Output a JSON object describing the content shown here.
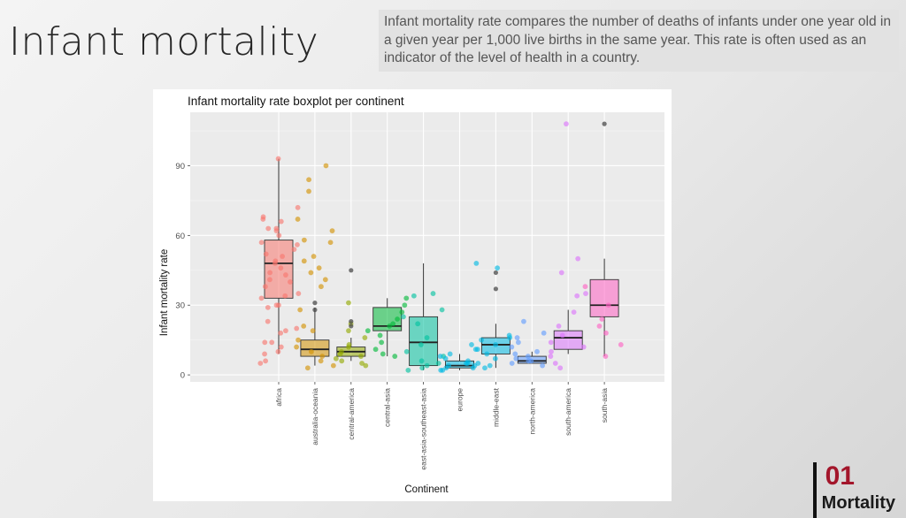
{
  "slide": {
    "title": "Infant mortality",
    "description": "Infant mortality rate compares the number of deaths of infants under one year old in a given year per 1,000 live births in the same year. This rate is often used as an indicator of the level of health in a country.",
    "section_number": "01",
    "section_name": "Mortality",
    "accent_color": "#a3162b"
  },
  "chart_data": {
    "type": "boxplot",
    "title": "Infant mortality rate boxplot per continent",
    "xlabel": "Continent",
    "ylabel": "Infant mortality rate",
    "ylim": [
      -3,
      113
    ],
    "yticks": [
      0,
      30,
      60,
      90
    ],
    "grid": true,
    "legend": "none",
    "categories": [
      "africa",
      "australia-oceania",
      "central-america",
      "central-asia",
      "east-asia-southeast-asia",
      "europe",
      "middle-east",
      "north-america",
      "south-america",
      "south-asia"
    ],
    "colors": [
      "#f8766d",
      "#d39200",
      "#93aa00",
      "#00ba38",
      "#00c19f",
      "#00b9e3",
      "#00b9e3",
      "#619cff",
      "#db72fb",
      "#ff61c3"
    ],
    "boxes": [
      {
        "category": "africa",
        "min": 9,
        "q1": 33,
        "median": 48,
        "q3": 58,
        "max": 93
      },
      {
        "category": "australia-oceania",
        "min": 4,
        "q1": 8,
        "median": 11,
        "q3": 15,
        "max": 29
      },
      {
        "category": "central-america",
        "min": 6,
        "q1": 8,
        "median": 10,
        "q3": 12,
        "max": 16
      },
      {
        "category": "central-asia",
        "min": 8,
        "q1": 19,
        "median": 21,
        "q3": 29,
        "max": 33
      },
      {
        "category": "east-asia-southeast-asia",
        "min": 2,
        "q1": 4,
        "median": 14,
        "q3": 25,
        "max": 48
      },
      {
        "category": "europe",
        "min": 2,
        "q1": 3,
        "median": 4,
        "q3": 6,
        "max": 9
      },
      {
        "category": "middle-east",
        "min": 3,
        "q1": 9,
        "median": 13,
        "q3": 16,
        "max": 22
      },
      {
        "category": "north-america",
        "min": 5,
        "q1": 5,
        "median": 6,
        "q3": 8,
        "max": 10
      },
      {
        "category": "south-america",
        "min": 9,
        "q1": 11,
        "median": 16,
        "q3": 19,
        "max": 28
      },
      {
        "category": "south-asia",
        "min": 8,
        "q1": 25,
        "median": 30,
        "q3": 41,
        "max": 50
      }
    ],
    "outliers": [
      {
        "category": "australia-oceania",
        "y": 31
      },
      {
        "category": "australia-oceania",
        "y": 28
      },
      {
        "category": "central-america",
        "y": 45
      },
      {
        "category": "central-america",
        "y": 23
      },
      {
        "category": "central-america",
        "y": 21
      },
      {
        "category": "middle-east",
        "y": 44
      },
      {
        "category": "middle-east",
        "y": 37
      },
      {
        "category": "south-asia",
        "y": 108
      }
    ],
    "points": [
      {
        "category": "africa",
        "values": [
          93,
          66,
          67,
          63,
          63,
          60,
          57,
          54,
          51,
          48,
          44,
          40,
          34,
          33,
          30,
          29,
          19,
          14,
          12,
          10,
          6,
          5,
          20
        ]
      },
      {
        "category": "africa",
        "values": [
          72,
          68,
          62,
          56,
          52,
          49,
          46,
          43,
          41,
          38,
          35,
          30,
          23,
          18,
          14,
          9
        ]
      },
      {
        "category": "australia-oceania",
        "values": [
          90,
          84,
          79,
          67,
          62,
          58,
          57,
          51,
          49,
          46,
          44,
          41,
          38,
          28,
          21,
          19,
          15,
          12,
          10,
          8,
          6,
          4,
          3
        ]
      },
      {
        "category": "central-america",
        "values": [
          31,
          22,
          19,
          16,
          13,
          12,
          10,
          9,
          8,
          7,
          6,
          5,
          4
        ]
      },
      {
        "category": "central-asia",
        "values": [
          33,
          30,
          27,
          24,
          22,
          21,
          19,
          17,
          14,
          11,
          9,
          8
        ]
      },
      {
        "category": "east-asia-southeast-asia",
        "values": [
          35,
          34,
          28,
          25,
          22,
          16,
          13,
          10,
          8,
          6,
          5,
          4,
          3,
          2
        ]
      },
      {
        "category": "europe",
        "values": [
          13,
          11,
          9,
          8,
          7,
          6,
          5,
          5,
          4,
          4,
          3,
          3,
          2,
          2
        ]
      },
      {
        "category": "middle-east",
        "values": [
          48,
          46,
          17,
          16,
          15,
          13,
          11,
          9,
          7,
          5,
          4,
          3
        ]
      },
      {
        "category": "north-america",
        "values": [
          23,
          18,
          16,
          14,
          12,
          10,
          9,
          8,
          7,
          6,
          6,
          5,
          4
        ]
      },
      {
        "category": "south-america",
        "values": [
          108,
          50,
          44,
          35,
          34,
          27,
          21,
          17,
          14,
          12,
          10,
          8,
          5,
          3
        ]
      },
      {
        "category": "south-asia",
        "values": [
          38,
          30,
          24,
          21,
          18,
          13,
          8
        ]
      }
    ]
  }
}
